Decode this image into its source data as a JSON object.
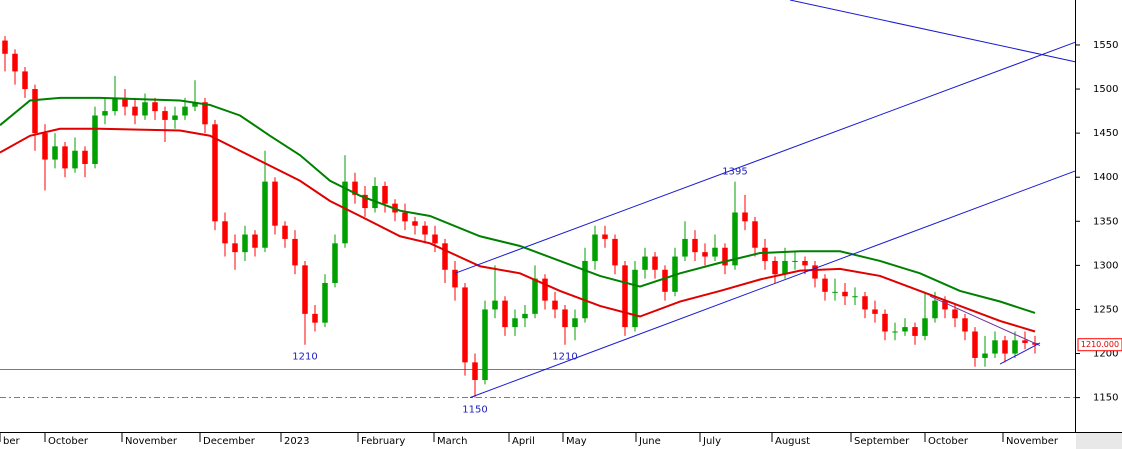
{
  "chart_data": {
    "type": "candlestick",
    "xlim": [
      0,
      107.5
    ],
    "ylim": [
      1111,
      1601
    ],
    "yticks": [
      1150,
      1200,
      1250,
      1300,
      1350,
      1400,
      1450,
      1500,
      1550
    ],
    "xticks": [
      {
        "value": 0,
        "label": "ber"
      },
      {
        "value": 4.5,
        "label": "October"
      },
      {
        "value": 12.2,
        "label": "November"
      },
      {
        "value": 20,
        "label": "December"
      },
      {
        "value": 28.1,
        "label": "2023"
      },
      {
        "value": 35.8,
        "label": "February"
      },
      {
        "value": 43.4,
        "label": "March"
      },
      {
        "value": 50.9,
        "label": "April"
      },
      {
        "value": 56.3,
        "label": "May"
      },
      {
        "value": 63.6,
        "label": "June"
      },
      {
        "value": 70,
        "label": "July"
      },
      {
        "value": 77.2,
        "label": "August"
      },
      {
        "value": 85.1,
        "label": "September"
      },
      {
        "value": 92.5,
        "label": "October"
      },
      {
        "value": 100.3,
        "label": "November"
      }
    ],
    "up_color": "#00a000",
    "down_color": "#ff0000",
    "x": [
      0.5,
      1.5,
      2.5,
      3.5,
      4.5,
      5.5,
      6.5,
      7.5,
      8.5,
      9.5,
      10.5,
      11.5,
      12.5,
      13.5,
      14.5,
      15.5,
      16.5,
      17.5,
      18.5,
      19.5,
      20.5,
      21.5,
      22.5,
      23.5,
      24.5,
      25.5,
      26.5,
      27.5,
      28.5,
      29.5,
      30.5,
      31.5,
      32.5,
      33.5,
      34.5,
      35.5,
      36.5,
      37.5,
      38.5,
      39.5,
      40.5,
      41.5,
      42.5,
      43.5,
      44.5,
      45.5,
      46.5,
      47.5,
      48.5,
      49.5,
      50.5,
      51.5,
      52.5,
      53.5,
      54.5,
      55.5,
      56.5,
      57.5,
      58.5,
      59.5,
      60.5,
      61.5,
      62.5,
      63.5,
      64.5,
      65.5,
      66.5,
      67.5,
      68.5,
      69.5,
      70.5,
      71.5,
      72.5,
      73.5,
      74.5,
      75.5,
      76.5,
      77.5,
      78.5,
      79.5,
      80.5,
      81.5,
      82.5,
      83.5,
      84.5,
      85.5,
      86.5,
      87.5,
      88.5,
      89.5,
      90.5,
      91.5,
      92.5,
      93.5,
      94.5,
      95.5,
      96.5,
      97.5,
      98.5,
      99.5,
      100.5,
      101.5,
      102.5,
      103.5
    ],
    "ohlc": [
      [
        1555,
        1560,
        1520,
        1540
      ],
      [
        1540,
        1545,
        1505,
        1520
      ],
      [
        1520,
        1525,
        1490,
        1500
      ],
      [
        1500,
        1505,
        1430,
        1450
      ],
      [
        1450,
        1460,
        1385,
        1420
      ],
      [
        1420,
        1450,
        1410,
        1435
      ],
      [
        1435,
        1440,
        1400,
        1410
      ],
      [
        1410,
        1445,
        1405,
        1430
      ],
      [
        1430,
        1435,
        1400,
        1415
      ],
      [
        1415,
        1480,
        1410,
        1470
      ],
      [
        1470,
        1490,
        1460,
        1475
      ],
      [
        1475,
        1515,
        1470,
        1490
      ],
      [
        1490,
        1500,
        1470,
        1480
      ],
      [
        1480,
        1490,
        1460,
        1470
      ],
      [
        1470,
        1495,
        1465,
        1485
      ],
      [
        1485,
        1490,
        1465,
        1475
      ],
      [
        1475,
        1480,
        1440,
        1465
      ],
      [
        1465,
        1480,
        1455,
        1470
      ],
      [
        1470,
        1490,
        1465,
        1480
      ],
      [
        1480,
        1510,
        1475,
        1485
      ],
      [
        1485,
        1490,
        1450,
        1460
      ],
      [
        1460,
        1465,
        1340,
        1350
      ],
      [
        1350,
        1360,
        1310,
        1325
      ],
      [
        1325,
        1335,
        1295,
        1315
      ],
      [
        1315,
        1345,
        1305,
        1335
      ],
      [
        1335,
        1340,
        1310,
        1320
      ],
      [
        1320,
        1430,
        1315,
        1395
      ],
      [
        1395,
        1400,
        1335,
        1345
      ],
      [
        1345,
        1350,
        1320,
        1330
      ],
      [
        1330,
        1340,
        1290,
        1300
      ],
      [
        1300,
        1305,
        1210,
        1245
      ],
      [
        1245,
        1255,
        1225,
        1235
      ],
      [
        1235,
        1290,
        1230,
        1280
      ],
      [
        1280,
        1335,
        1275,
        1325
      ],
      [
        1325,
        1425,
        1320,
        1395
      ],
      [
        1395,
        1405,
        1370,
        1380
      ],
      [
        1380,
        1390,
        1355,
        1365
      ],
      [
        1365,
        1400,
        1360,
        1390
      ],
      [
        1390,
        1395,
        1360,
        1370
      ],
      [
        1370,
        1375,
        1350,
        1360
      ],
      [
        1360,
        1370,
        1340,
        1350
      ],
      [
        1350,
        1355,
        1335,
        1345
      ],
      [
        1345,
        1350,
        1325,
        1335
      ],
      [
        1335,
        1345,
        1315,
        1325
      ],
      [
        1325,
        1330,
        1280,
        1295
      ],
      [
        1295,
        1305,
        1260,
        1275
      ],
      [
        1275,
        1280,
        1175,
        1190
      ],
      [
        1190,
        1200,
        1150,
        1170
      ],
      [
        1170,
        1260,
        1165,
        1250
      ],
      [
        1250,
        1300,
        1240,
        1260
      ],
      [
        1260,
        1265,
        1220,
        1230
      ],
      [
        1230,
        1250,
        1220,
        1240
      ],
      [
        1240,
        1255,
        1230,
        1245
      ],
      [
        1245,
        1300,
        1240,
        1285
      ],
      [
        1285,
        1290,
        1250,
        1260
      ],
      [
        1260,
        1270,
        1240,
        1250
      ],
      [
        1250,
        1255,
        1210,
        1230
      ],
      [
        1230,
        1250,
        1215,
        1240
      ],
      [
        1240,
        1320,
        1235,
        1305
      ],
      [
        1305,
        1345,
        1295,
        1335
      ],
      [
        1335,
        1345,
        1320,
        1330
      ],
      [
        1330,
        1335,
        1290,
        1300
      ],
      [
        1300,
        1305,
        1220,
        1230
      ],
      [
        1230,
        1305,
        1225,
        1295
      ],
      [
        1295,
        1320,
        1285,
        1310
      ],
      [
        1310,
        1315,
        1285,
        1295
      ],
      [
        1295,
        1300,
        1260,
        1270
      ],
      [
        1270,
        1320,
        1265,
        1310
      ],
      [
        1310,
        1350,
        1305,
        1330
      ],
      [
        1330,
        1340,
        1305,
        1315
      ],
      [
        1315,
        1325,
        1300,
        1310
      ],
      [
        1310,
        1335,
        1305,
        1320
      ],
      [
        1320,
        1325,
        1290,
        1300
      ],
      [
        1300,
        1395,
        1295,
        1360
      ],
      [
        1360,
        1380,
        1340,
        1350
      ],
      [
        1350,
        1355,
        1310,
        1320
      ],
      [
        1320,
        1330,
        1295,
        1305
      ],
      [
        1305,
        1310,
        1280,
        1290
      ],
      [
        1290,
        1320,
        1285,
        1305
      ],
      [
        1305,
        1315,
        1295,
        1305
      ],
      [
        1305,
        1310,
        1290,
        1300
      ],
      [
        1300,
        1305,
        1275,
        1285
      ],
      [
        1285,
        1290,
        1260,
        1270
      ],
      [
        1270,
        1285,
        1260,
        1270
      ],
      [
        1270,
        1280,
        1255,
        1265
      ],
      [
        1265,
        1275,
        1255,
        1265
      ],
      [
        1265,
        1270,
        1240,
        1250
      ],
      [
        1250,
        1260,
        1235,
        1245
      ],
      [
        1245,
        1250,
        1215,
        1225
      ],
      [
        1225,
        1235,
        1215,
        1225
      ],
      [
        1225,
        1240,
        1220,
        1230
      ],
      [
        1230,
        1235,
        1210,
        1220
      ],
      [
        1220,
        1270,
        1215,
        1240
      ],
      [
        1240,
        1270,
        1235,
        1260
      ],
      [
        1260,
        1265,
        1240,
        1250
      ],
      [
        1250,
        1255,
        1230,
        1240
      ],
      [
        1240,
        1245,
        1215,
        1225
      ],
      [
        1225,
        1230,
        1185,
        1195
      ],
      [
        1195,
        1220,
        1185,
        1200
      ],
      [
        1200,
        1225,
        1195,
        1215
      ],
      [
        1215,
        1220,
        1190,
        1200
      ],
      [
        1200,
        1225,
        1195,
        1215
      ],
      [
        1215,
        1225,
        1205,
        1212
      ],
      [
        1212,
        1220,
        1200,
        1210
      ]
    ],
    "ma_x": [
      0,
      3,
      6,
      10,
      18,
      21,
      24,
      27,
      30,
      33,
      36,
      40,
      43,
      48,
      52,
      56,
      60,
      64,
      68,
      72,
      76,
      80,
      84,
      88,
      92,
      96,
      100,
      103.5
    ],
    "moving_averages": [
      {
        "color": "#008000",
        "values": [
          1459,
          1487,
          1490,
          1490,
          1487,
          1482,
          1470,
          1447,
          1425,
          1396,
          1379,
          1362,
          1356,
          1333,
          1322,
          1305,
          1288,
          1276,
          1291,
          1303,
          1314,
          1316,
          1316,
          1305,
          1291,
          1271,
          1259,
          1246
        ]
      },
      {
        "color": "#e00000",
        "values": [
          1428,
          1447,
          1455,
          1455,
          1453,
          1447,
          1430,
          1413,
          1396,
          1373,
          1356,
          1333,
          1325,
          1299,
          1291,
          1271,
          1254,
          1242,
          1259,
          1271,
          1284,
          1294,
          1296,
          1288,
          1271,
          1254,
          1237,
          1225
        ]
      }
    ],
    "trendlines": [
      {
        "color": "#1a1ad0",
        "x": [
          45.5,
          107.5
        ],
        "y": [
          1291,
          1553
        ]
      },
      {
        "color": "#1a1ad0",
        "x": [
          47,
          107.5
        ],
        "y": [
          1150,
          1407
        ]
      },
      {
        "color": "#1a1ad0",
        "x": [
          79,
          107.5
        ],
        "y": [
          1601,
          1531
        ]
      },
      {
        "color": "#7030a0",
        "x": [
          93,
          104
        ],
        "y": [
          1265,
          1209
        ]
      },
      {
        "color": "#1a1ad0",
        "x": [
          100,
          104
        ],
        "y": [
          1188,
          1212
        ]
      }
    ],
    "hlines": [
      {
        "value": 1182,
        "style": "solid",
        "color": "#3050a0"
      },
      {
        "value": 1150,
        "style": "dashdot",
        "color": "#3050a0"
      }
    ],
    "annotations": [
      {
        "text": "1210",
        "x": 30.5,
        "y": 1210,
        "position": "below"
      },
      {
        "text": "1210",
        "x": 56.5,
        "y": 1210,
        "position": "below"
      },
      {
        "text": "1150",
        "x": 47.5,
        "y": 1150,
        "position": "below"
      },
      {
        "text": "1395",
        "x": 73.5,
        "y": 1395,
        "position": "above"
      }
    ],
    "current_price": {
      "value": 1210,
      "label": "1210.000"
    }
  }
}
